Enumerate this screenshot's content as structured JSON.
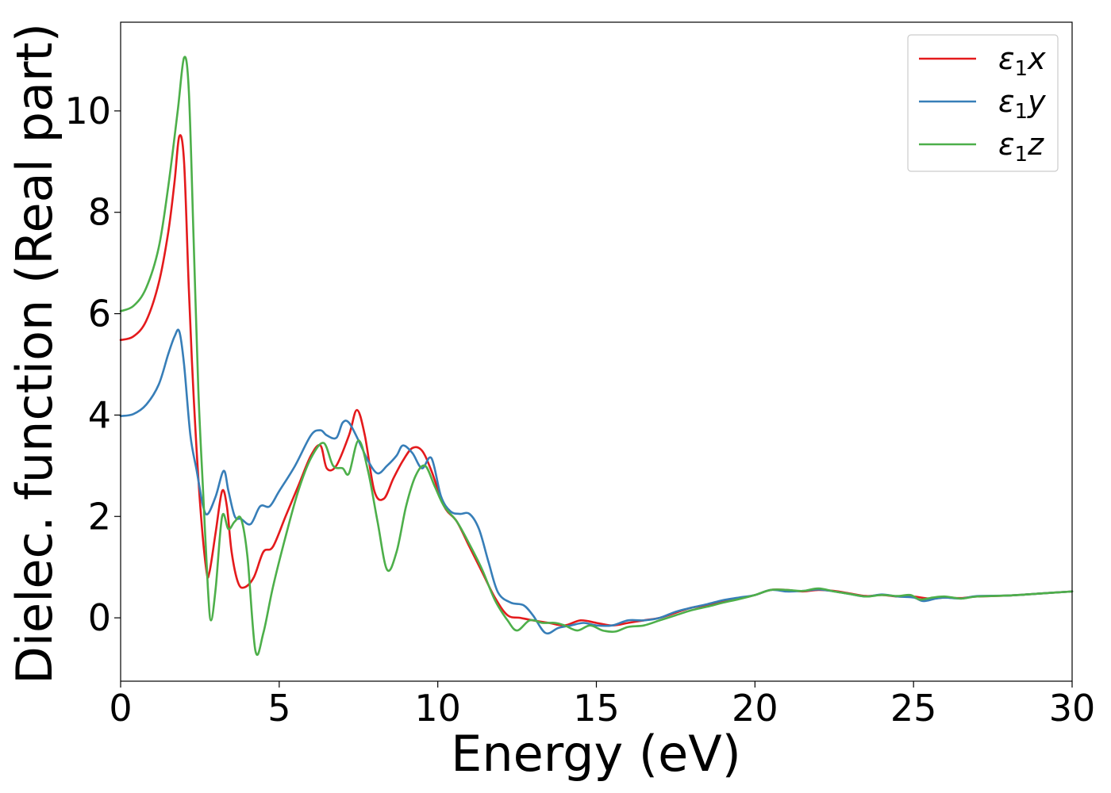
{
  "chart_data": {
    "type": "line",
    "title": "",
    "xlabel": "Energy (eV)",
    "ylabel": "Dielec. function (Real part)",
    "xlim": [
      0,
      30
    ],
    "ylim": [
      -1.25,
      11.75
    ],
    "xticks": [
      0,
      5,
      10,
      15,
      20,
      25,
      30
    ],
    "yticks": [
      0,
      2,
      4,
      6,
      8,
      10
    ],
    "grid": false,
    "legend_position": "top-right",
    "series": [
      {
        "name": "ε1x",
        "color": "#e41a1c",
        "points": [
          [
            0,
            5.48
          ],
          [
            0.4,
            5.55
          ],
          [
            0.8,
            5.85
          ],
          [
            1.2,
            6.6
          ],
          [
            1.5,
            7.6
          ],
          [
            1.7,
            8.6
          ],
          [
            1.85,
            9.5
          ],
          [
            2.0,
            9.0
          ],
          [
            2.15,
            6.5
          ],
          [
            2.3,
            4.4
          ],
          [
            2.5,
            2.3
          ],
          [
            2.7,
            0.95
          ],
          [
            2.8,
            0.9
          ],
          [
            3.0,
            1.7
          ],
          [
            3.2,
            2.5
          ],
          [
            3.35,
            2.2
          ],
          [
            3.5,
            1.3
          ],
          [
            3.7,
            0.7
          ],
          [
            3.9,
            0.6
          ],
          [
            4.2,
            0.8
          ],
          [
            4.5,
            1.3
          ],
          [
            4.8,
            1.4
          ],
          [
            5.2,
            2.0
          ],
          [
            5.6,
            2.6
          ],
          [
            6.0,
            3.2
          ],
          [
            6.3,
            3.4
          ],
          [
            6.5,
            2.95
          ],
          [
            6.8,
            3.0
          ],
          [
            7.2,
            3.6
          ],
          [
            7.45,
            4.1
          ],
          [
            7.7,
            3.6
          ],
          [
            8.0,
            2.5
          ],
          [
            8.3,
            2.35
          ],
          [
            8.6,
            2.75
          ],
          [
            8.9,
            3.1
          ],
          [
            9.2,
            3.35
          ],
          [
            9.5,
            3.3
          ],
          [
            9.8,
            2.9
          ],
          [
            10.2,
            2.2
          ],
          [
            10.6,
            1.9
          ],
          [
            11.0,
            1.4
          ],
          [
            11.4,
            0.9
          ],
          [
            11.8,
            0.4
          ],
          [
            12.2,
            0.05
          ],
          [
            12.6,
            0.0
          ],
          [
            13.0,
            -0.05
          ],
          [
            13.5,
            -0.1
          ],
          [
            14.0,
            -0.15
          ],
          [
            14.5,
            -0.05
          ],
          [
            15.0,
            -0.1
          ],
          [
            15.5,
            -0.15
          ],
          [
            16.0,
            -0.1
          ],
          [
            16.5,
            -0.05
          ],
          [
            17.0,
            0.0
          ],
          [
            17.5,
            0.1
          ],
          [
            18.0,
            0.2
          ],
          [
            18.5,
            0.25
          ],
          [
            19.0,
            0.32
          ],
          [
            19.5,
            0.38
          ],
          [
            20.0,
            0.45
          ],
          [
            20.5,
            0.55
          ],
          [
            21.0,
            0.55
          ],
          [
            21.5,
            0.52
          ],
          [
            22.0,
            0.55
          ],
          [
            22.5,
            0.53
          ],
          [
            23.0,
            0.48
          ],
          [
            23.5,
            0.43
          ],
          [
            24.0,
            0.45
          ],
          [
            24.5,
            0.42
          ],
          [
            25.0,
            0.42
          ],
          [
            25.5,
            0.38
          ],
          [
            26.0,
            0.4
          ],
          [
            26.5,
            0.39
          ],
          [
            27.0,
            0.42
          ],
          [
            28.0,
            0.44
          ],
          [
            29.0,
            0.48
          ],
          [
            30.0,
            0.52
          ]
        ]
      },
      {
        "name": "ε1y",
        "color": "#377eb8",
        "points": [
          [
            0,
            3.98
          ],
          [
            0.4,
            4.02
          ],
          [
            0.8,
            4.2
          ],
          [
            1.2,
            4.6
          ],
          [
            1.5,
            5.2
          ],
          [
            1.7,
            5.55
          ],
          [
            1.85,
            5.65
          ],
          [
            2.0,
            5.0
          ],
          [
            2.2,
            3.6
          ],
          [
            2.4,
            2.9
          ],
          [
            2.6,
            2.2
          ],
          [
            2.75,
            2.05
          ],
          [
            3.0,
            2.4
          ],
          [
            3.25,
            2.9
          ],
          [
            3.4,
            2.5
          ],
          [
            3.6,
            2.0
          ],
          [
            3.8,
            1.95
          ],
          [
            4.1,
            1.85
          ],
          [
            4.4,
            2.2
          ],
          [
            4.7,
            2.2
          ],
          [
            5.0,
            2.5
          ],
          [
            5.5,
            3.0
          ],
          [
            6.0,
            3.6
          ],
          [
            6.3,
            3.7
          ],
          [
            6.5,
            3.6
          ],
          [
            6.8,
            3.55
          ],
          [
            7.0,
            3.85
          ],
          [
            7.2,
            3.85
          ],
          [
            7.5,
            3.5
          ],
          [
            7.8,
            3.1
          ],
          [
            8.1,
            2.85
          ],
          [
            8.4,
            3.0
          ],
          [
            8.7,
            3.2
          ],
          [
            8.9,
            3.4
          ],
          [
            9.2,
            3.25
          ],
          [
            9.5,
            2.95
          ],
          [
            9.8,
            3.15
          ],
          [
            10.1,
            2.4
          ],
          [
            10.4,
            2.1
          ],
          [
            10.7,
            2.05
          ],
          [
            11.0,
            2.05
          ],
          [
            11.3,
            1.75
          ],
          [
            11.6,
            1.1
          ],
          [
            11.9,
            0.5
          ],
          [
            12.3,
            0.3
          ],
          [
            12.7,
            0.25
          ],
          [
            13.0,
            0.05
          ],
          [
            13.4,
            -0.3
          ],
          [
            13.8,
            -0.2
          ],
          [
            14.2,
            -0.15
          ],
          [
            14.6,
            -0.1
          ],
          [
            15.0,
            -0.15
          ],
          [
            15.5,
            -0.15
          ],
          [
            16.0,
            -0.05
          ],
          [
            16.5,
            -0.05
          ],
          [
            17.0,
            0.0
          ],
          [
            17.5,
            0.12
          ],
          [
            18.0,
            0.2
          ],
          [
            18.5,
            0.27
          ],
          [
            19.0,
            0.35
          ],
          [
            19.5,
            0.4
          ],
          [
            20.0,
            0.45
          ],
          [
            20.5,
            0.55
          ],
          [
            21.0,
            0.52
          ],
          [
            21.5,
            0.53
          ],
          [
            22.0,
            0.56
          ],
          [
            22.5,
            0.52
          ],
          [
            23.0,
            0.47
          ],
          [
            23.5,
            0.42
          ],
          [
            24.0,
            0.46
          ],
          [
            24.5,
            0.42
          ],
          [
            25.0,
            0.4
          ],
          [
            25.3,
            0.33
          ],
          [
            25.7,
            0.38
          ],
          [
            26.0,
            0.4
          ],
          [
            26.5,
            0.38
          ],
          [
            27.0,
            0.43
          ],
          [
            28.0,
            0.44
          ],
          [
            29.0,
            0.48
          ],
          [
            30.0,
            0.52
          ]
        ]
      },
      {
        "name": "ε1z",
        "color": "#4daf4a",
        "points": [
          [
            0,
            6.05
          ],
          [
            0.4,
            6.15
          ],
          [
            0.8,
            6.5
          ],
          [
            1.2,
            7.3
          ],
          [
            1.5,
            8.5
          ],
          [
            1.8,
            10.0
          ],
          [
            2.0,
            11.05
          ],
          [
            2.15,
            10.4
          ],
          [
            2.3,
            7.5
          ],
          [
            2.45,
            4.5
          ],
          [
            2.6,
            2.5
          ],
          [
            2.75,
            0.6
          ],
          [
            2.85,
            -0.05
          ],
          [
            3.0,
            0.6
          ],
          [
            3.2,
            2.0
          ],
          [
            3.4,
            1.75
          ],
          [
            3.6,
            1.9
          ],
          [
            3.8,
            1.95
          ],
          [
            4.0,
            1.2
          ],
          [
            4.25,
            -0.65
          ],
          [
            4.5,
            -0.3
          ],
          [
            4.8,
            0.6
          ],
          [
            5.2,
            1.6
          ],
          [
            5.6,
            2.5
          ],
          [
            6.0,
            3.15
          ],
          [
            6.4,
            3.45
          ],
          [
            6.7,
            3.0
          ],
          [
            7.0,
            2.95
          ],
          [
            7.2,
            2.85
          ],
          [
            7.5,
            3.5
          ],
          [
            7.8,
            2.9
          ],
          [
            8.1,
            1.9
          ],
          [
            8.4,
            0.95
          ],
          [
            8.7,
            1.3
          ],
          [
            9.0,
            2.2
          ],
          [
            9.3,
            2.8
          ],
          [
            9.6,
            3.0
          ],
          [
            9.9,
            2.6
          ],
          [
            10.2,
            2.2
          ],
          [
            10.6,
            1.9
          ],
          [
            11.0,
            1.45
          ],
          [
            11.4,
            0.95
          ],
          [
            11.8,
            0.35
          ],
          [
            12.2,
            -0.05
          ],
          [
            12.5,
            -0.25
          ],
          [
            12.9,
            -0.05
          ],
          [
            13.3,
            -0.1
          ],
          [
            13.7,
            -0.1
          ],
          [
            14.0,
            -0.15
          ],
          [
            14.4,
            -0.25
          ],
          [
            14.8,
            -0.15
          ],
          [
            15.2,
            -0.25
          ],
          [
            15.6,
            -0.27
          ],
          [
            16.0,
            -0.18
          ],
          [
            16.5,
            -0.15
          ],
          [
            17.0,
            -0.05
          ],
          [
            17.5,
            0.05
          ],
          [
            18.0,
            0.15
          ],
          [
            18.5,
            0.22
          ],
          [
            19.0,
            0.3
          ],
          [
            19.5,
            0.37
          ],
          [
            20.0,
            0.45
          ],
          [
            20.5,
            0.55
          ],
          [
            21.0,
            0.55
          ],
          [
            21.5,
            0.53
          ],
          [
            22.0,
            0.58
          ],
          [
            22.5,
            0.52
          ],
          [
            23.0,
            0.47
          ],
          [
            23.5,
            0.42
          ],
          [
            24.0,
            0.45
          ],
          [
            24.5,
            0.43
          ],
          [
            24.9,
            0.45
          ],
          [
            25.2,
            0.36
          ],
          [
            25.6,
            0.4
          ],
          [
            26.0,
            0.42
          ],
          [
            26.5,
            0.38
          ],
          [
            27.0,
            0.42
          ],
          [
            28.0,
            0.44
          ],
          [
            29.0,
            0.48
          ],
          [
            30.0,
            0.52
          ]
        ]
      }
    ]
  }
}
